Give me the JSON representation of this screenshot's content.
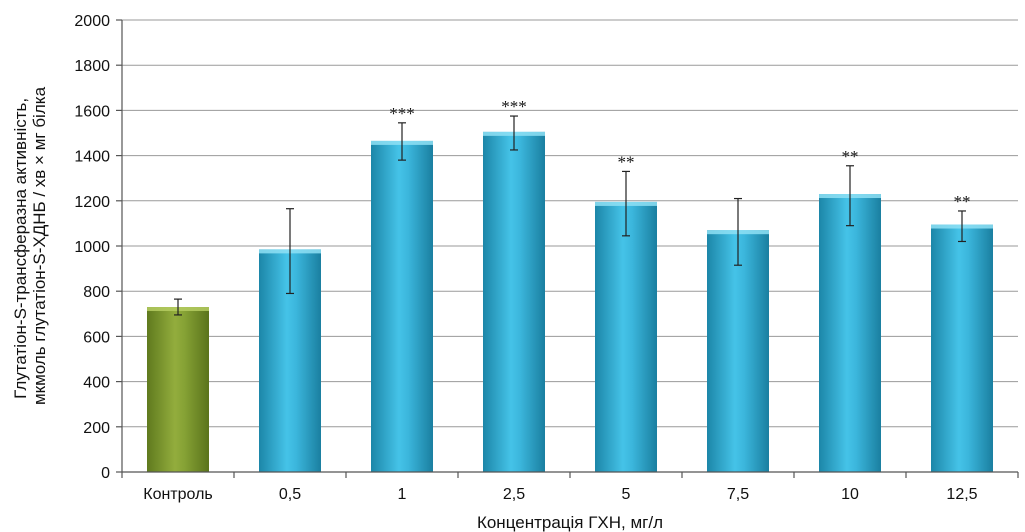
{
  "chart_data": {
    "type": "bar",
    "categories": [
      "Контроль",
      "0,5",
      "1",
      "2,5",
      "5",
      "7,5",
      "10",
      "12,5"
    ],
    "values": [
      730,
      985,
      1465,
      1505,
      1195,
      1070,
      1230,
      1095
    ],
    "error_low": [
      695,
      790,
      1380,
      1425,
      1045,
      915,
      1090,
      1020
    ],
    "error_high": [
      765,
      1165,
      1545,
      1575,
      1330,
      1210,
      1355,
      1155
    ],
    "significance": [
      "",
      "",
      "***",
      "***",
      "**",
      "",
      "**",
      "**"
    ],
    "bar_colors": [
      "#7f9a2e",
      "#2fa9cf",
      "#2fa9cf",
      "#2fa9cf",
      "#2fa9cf",
      "#2fa9cf",
      "#2fa9cf",
      "#2fa9cf"
    ],
    "xlabel": "Концентрація ГХН, мг/л",
    "ylabel_line1": "Глутатіон-S-трансферазна активність,",
    "ylabel_line2": "мкмоль глутатіон-S-ХДНБ / хв × мг білка",
    "ylim": [
      0,
      2000
    ],
    "yticks": [
      0,
      200,
      400,
      600,
      800,
      1000,
      1200,
      1400,
      1600,
      1800,
      2000
    ],
    "grid": true
  }
}
